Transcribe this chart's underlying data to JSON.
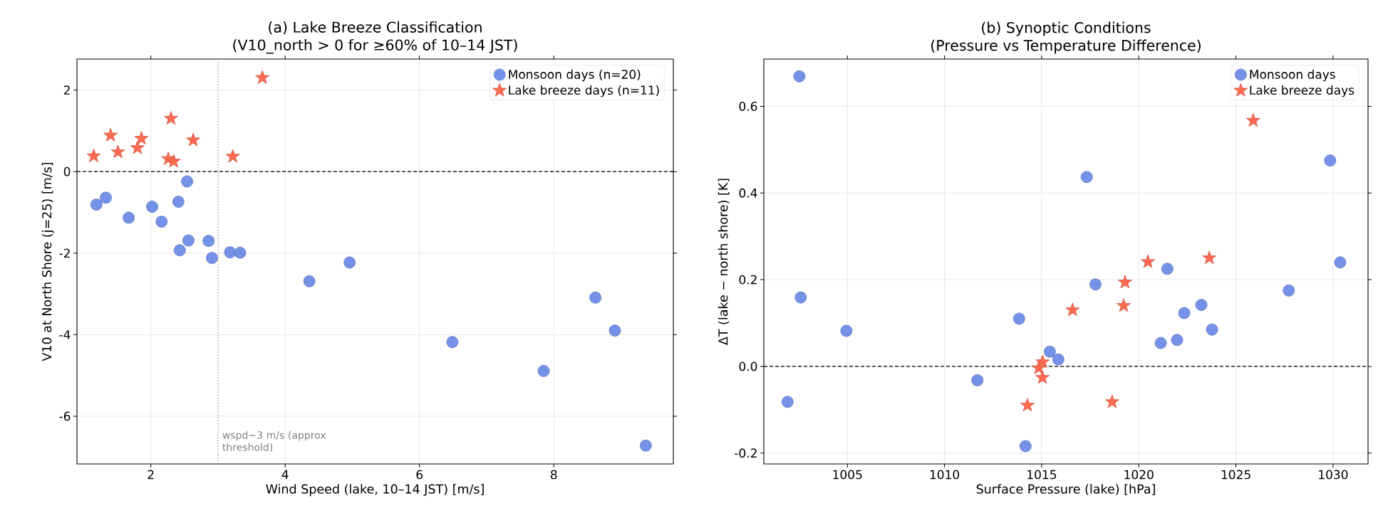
{
  "chart_data": [
    {
      "type": "scatter",
      "title": "(a) Lake Breeze Classification",
      "subtitle": "(V10_north > 0 for ≥60% of 10–14 JST)",
      "xlabel": "Wind Speed (lake, 10–14 JST) [m/s]",
      "ylabel": "V10 at North Shore (j=25) [m/s]",
      "xlim": [
        0.9,
        9.78
      ],
      "ylim": [
        -7.17,
        2.76
      ],
      "xticks": [
        2,
        4,
        6,
        8
      ],
      "yticks": [
        -6,
        -4,
        -2,
        0,
        2
      ],
      "grid": true,
      "legend": "top right",
      "series": [
        {
          "name": "Monsoon days (n=20)",
          "color": "#7592e8",
          "marker": "circle",
          "x": [
            2.54,
            1.33,
            1.19,
            2.02,
            2.41,
            1.67,
            2.16,
            2.56,
            2.86,
            2.43,
            2.91,
            3.18,
            3.33,
            4.36,
            4.96,
            6.49,
            7.85,
            8.62,
            8.91,
            9.37
          ],
          "values": [
            -0.24,
            -0.64,
            -0.81,
            -0.86,
            -0.74,
            -1.13,
            -1.23,
            -1.69,
            -1.7,
            -1.93,
            -2.12,
            -1.98,
            -1.99,
            -2.69,
            -2.23,
            -4.18,
            -4.89,
            -3.09,
            -3.9,
            -6.72
          ]
        },
        {
          "name": "Lake breeze days (n=11)",
          "color": "#fd6a50",
          "marker": "star",
          "x": [
            1.15,
            1.4,
            1.51,
            1.8,
            1.86,
            2.3,
            2.26,
            2.34,
            2.63,
            3.22,
            3.66
          ],
          "values": [
            0.38,
            0.89,
            0.48,
            0.58,
            0.81,
            1.3,
            0.31,
            0.25,
            0.77,
            0.37,
            2.3
          ]
        }
      ],
      "ref_lines": [
        {
          "axis": "y",
          "value": 0,
          "color": "#000000",
          "line_style": "dashed"
        },
        {
          "axis": "x",
          "value": 3,
          "color": "#888888",
          "line_style": "dotted"
        }
      ],
      "annotations": [
        {
          "text": "wspd~3 m/s (approx threshold)",
          "x": 3.05,
          "y": -6.9
        }
      ]
    },
    {
      "type": "scatter",
      "title": "(b) Synoptic Conditions",
      "subtitle": "(Pressure vs Temperature Difference)",
      "xlabel": "Surface Pressure (lake) [hPa]",
      "ylabel": "ΔT (lake − north shore) [K]",
      "xlim": [
        1000.7,
        1031.8
      ],
      "ylim": [
        -0.225,
        0.709
      ],
      "xticks": [
        1005,
        1010,
        1015,
        1020,
        1025,
        1030
      ],
      "yticks": [
        -0.2,
        {
          "value": 0,
          "label": "0.0"
        },
        0.2,
        0.4,
        0.6
      ],
      "grid": true,
      "legend": "top right",
      "series": [
        {
          "name": "Monsoon days",
          "color": "#7592e8",
          "marker": "circle",
          "x": [
            1002.53,
            1002.6,
            1004.95,
            1001.92,
            1013.84,
            1011.69,
            1014.17,
            1015.42,
            1015.86,
            1017.32,
            1017.77,
            1021.47,
            1021.13,
            1021.97,
            1022.34,
            1023.22,
            1023.77,
            1027.72,
            1029.85,
            1030.37
          ],
          "values": [
            0.669,
            0.159,
            0.082,
            -0.082,
            0.11,
            -0.032,
            -0.184,
            0.034,
            0.016,
            0.437,
            0.189,
            0.225,
            0.054,
            0.061,
            0.123,
            0.142,
            0.085,
            0.175,
            0.475,
            0.24
          ]
        },
        {
          "name": "Lake breeze days",
          "color": "#fd6a50",
          "marker": "star",
          "x": [
            1015.05,
            1014.85,
            1015.04,
            1014.27,
            1016.59,
            1018.63,
            1019.22,
            1019.29,
            1020.47,
            1023.63,
            1025.89
          ],
          "values": [
            0.01,
            -0.004,
            -0.026,
            -0.09,
            0.13,
            -0.082,
            0.14,
            0.194,
            0.241,
            0.25,
            0.567
          ]
        }
      ],
      "ref_lines": [
        {
          "axis": "y",
          "value": 0,
          "color": "#000000",
          "line_style": "dashed"
        }
      ]
    }
  ]
}
